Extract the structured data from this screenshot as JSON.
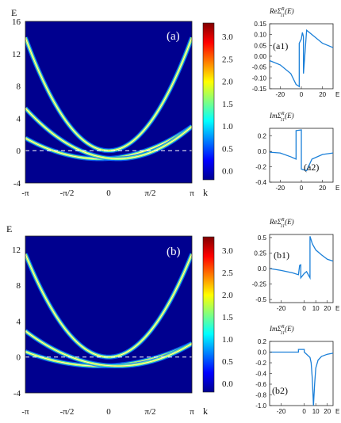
{
  "chart_data": [
    {
      "id": "a",
      "type": "heatmap",
      "panel_label": "(a)",
      "ylabel": "E",
      "xlabel": "k",
      "ylim": [
        -4,
        16
      ],
      "yticks": [
        "16",
        "12",
        "8",
        "4",
        "0",
        "-4"
      ],
      "ytick_values": [
        16,
        12,
        8,
        4,
        0,
        -4
      ],
      "xticks": [
        "-π",
        "-π/2",
        "0",
        "π/2",
        "π"
      ],
      "colorbar": {
        "ticks": [
          "3.0",
          "2.5",
          "2.0",
          "1.5",
          "1.0",
          "0.5",
          "0.0"
        ],
        "tick_values": [
          3.0,
          2.5,
          2.0,
          1.5,
          1.0,
          0.5,
          0.0
        ],
        "range": [
          -0.2,
          3.3
        ]
      },
      "dashed_line_E": 0,
      "bands": [
        {
          "shape": "parabola",
          "k0": 0,
          "E0": 0,
          "E_at_pi": 14
        },
        {
          "shape": "parabola",
          "k0": -0.35,
          "E0": -1,
          "E_at_pi": 3
        },
        {
          "shape": "parabola",
          "k0": 0.35,
          "E0": -1,
          "E_at_pi": 3
        }
      ]
    },
    {
      "id": "b",
      "type": "heatmap",
      "panel_label": "(b)",
      "ylabel": "E",
      "xlabel": "k",
      "ylim": [
        -4,
        13.5
      ],
      "yticks": [
        "12",
        "8",
        "4",
        "0",
        "-4"
      ],
      "ytick_values": [
        12,
        8,
        4,
        0,
        -4
      ],
      "xticks": [
        "-π",
        "-π/2",
        "0",
        "π/2",
        "π"
      ],
      "colorbar": {
        "ticks": [
          "3.0",
          "2.5",
          "2.0",
          "1.5",
          "1.0",
          "0.5",
          "0.0"
        ],
        "tick_values": [
          3.0,
          2.5,
          2.0,
          1.5,
          1.0,
          0.5,
          0.0
        ],
        "range": [
          -0.2,
          3.3
        ]
      },
      "dashed_line_E": 0,
      "bands": [
        {
          "shape": "parabola",
          "k0": 0,
          "E0": 0,
          "E_at_pi": 11.5
        },
        {
          "shape": "parabola",
          "k0": -0.35,
          "E0": -1,
          "E_at_pi": 1.5
        },
        {
          "shape": "parabola",
          "k0": 0.35,
          "E0": -1,
          "E_at_pi": 1.5
        }
      ]
    },
    {
      "id": "a1",
      "type": "line",
      "panel_label": "(a1)",
      "title_part": "ReΣ",
      "title_super": "R",
      "title_sub": "11",
      "title_arg": "(E)",
      "xlabel": "E",
      "xlim": [
        -30,
        30
      ],
      "ylim": [
        -0.15,
        0.15
      ],
      "xticks": [
        "-20",
        "0",
        "20"
      ],
      "xtick_values": [
        -20,
        0,
        20
      ],
      "yticks": [
        "0.15",
        "0.10",
        "0.05",
        "0.00",
        "-0.05",
        "-0.10",
        "-0.15"
      ],
      "ytick_values": [
        0.15,
        0.1,
        0.05,
        0.0,
        -0.05,
        -0.1,
        -0.15
      ],
      "series": [
        {
          "x": [
            -30,
            -20,
            -10,
            -5,
            -2,
            -2,
            0,
            1,
            2,
            2,
            5,
            10,
            20,
            30
          ],
          "y": [
            -0.02,
            -0.04,
            -0.08,
            -0.13,
            -0.14,
            0.06,
            0.08,
            0.11,
            0.09,
            -0.08,
            0.12,
            0.1,
            0.06,
            0.04
          ]
        }
      ]
    },
    {
      "id": "a2",
      "type": "line",
      "panel_label": "(a2)",
      "title_part": "ImΣ",
      "title_super": "R",
      "title_sub": "11",
      "title_arg": "(E)",
      "xlabel": "E",
      "xlim": [
        -30,
        30
      ],
      "ylim": [
        -0.4,
        0.3
      ],
      "xticks": [
        "-20",
        "0",
        "20"
      ],
      "xtick_values": [
        -20,
        0,
        20
      ],
      "yticks": [
        "0.2",
        "0.0",
        "-0.2",
        "-0.4"
      ],
      "ytick_values": [
        0.2,
        0.0,
        -0.2,
        -0.4
      ],
      "series": [
        {
          "x": [
            -30,
            -20,
            -10,
            -5,
            -5,
            0,
            0,
            5,
            10,
            20,
            30
          ],
          "y": [
            -0.01,
            -0.02,
            -0.07,
            -0.1,
            0.27,
            0.28,
            -0.23,
            -0.25,
            -0.1,
            -0.04,
            -0.02
          ]
        }
      ]
    },
    {
      "id": "b1",
      "type": "line",
      "panel_label": "(b1)",
      "title_part": "ReΣ",
      "title_super": "R",
      "title_sub": "11",
      "title_arg": "(E)",
      "xlabel": "E",
      "xlim": [
        -30,
        25
      ],
      "ylim": [
        -0.55,
        0.55
      ],
      "xticks": [
        "-20",
        "0",
        "10",
        "20"
      ],
      "xtick_values": [
        -20,
        0,
        10,
        20
      ],
      "yticks": [
        "0.5",
        "0.25",
        "0.0",
        "-0.25",
        "-0.5"
      ],
      "ytick_values": [
        0.5,
        0.25,
        0.0,
        -0.25,
        -0.5
      ],
      "series": [
        {
          "x": [
            -30,
            -20,
            -10,
            -5,
            -4,
            -3,
            -3,
            0,
            2,
            5,
            5,
            7,
            10,
            15,
            20,
            25
          ],
          "y": [
            0.0,
            -0.03,
            -0.07,
            -0.1,
            0.05,
            0.06,
            -0.15,
            -0.08,
            -0.05,
            -0.15,
            0.52,
            0.4,
            0.3,
            0.22,
            0.15,
            0.12
          ]
        }
      ]
    },
    {
      "id": "b2",
      "type": "line",
      "panel_label": "(b2)",
      "title_part": "ImΣ",
      "title_super": "R",
      "title_sub": "11",
      "title_arg": "(E)",
      "xlabel": "E",
      "xlim": [
        -30,
        25
      ],
      "ylim": [
        -1.0,
        0.2
      ],
      "xticks": [
        "-20",
        "0",
        "10",
        "20"
      ],
      "xtick_values": [
        -20,
        0,
        10,
        20
      ],
      "yticks": [
        "0.2",
        "0.0",
        "-0.2",
        "-0.4",
        "-0.6",
        "-0.8",
        "-1.0"
      ],
      "ytick_values": [
        0.2,
        0.0,
        -0.2,
        -0.4,
        -0.6,
        -0.8,
        -1.0
      ],
      "series": [
        {
          "x": [
            -30,
            -5,
            -5,
            0,
            0,
            5,
            6,
            7,
            8,
            9,
            10,
            12,
            15,
            20,
            25
          ],
          "y": [
            0.0,
            0.0,
            0.05,
            0.05,
            0.0,
            -0.1,
            -0.2,
            -0.5,
            -1.0,
            -0.6,
            -0.3,
            -0.15,
            -0.08,
            -0.04,
            -0.02
          ]
        }
      ]
    }
  ]
}
